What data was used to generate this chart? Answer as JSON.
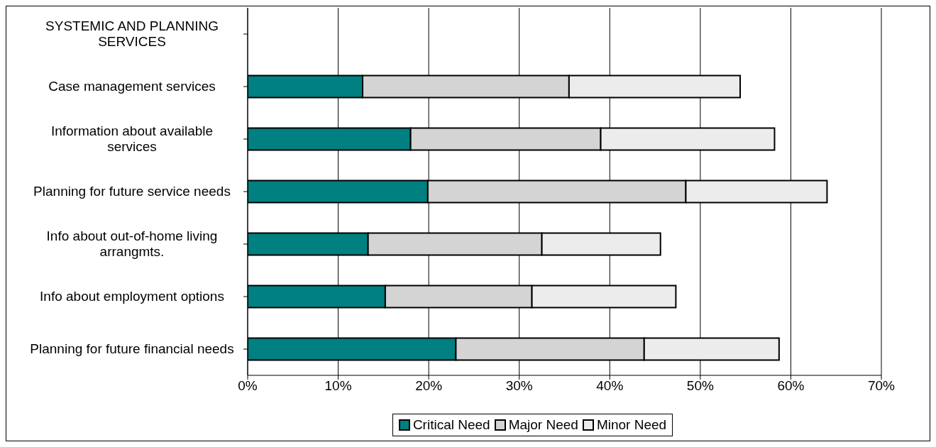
{
  "chart_data": {
    "type": "bar",
    "orientation": "horizontal",
    "stacked": true,
    "categories": [
      "SYSTEMIC AND PLANNING SERVICES",
      "Case management services",
      "Information about available services",
      "Planning for future service needs",
      "Info about out-of-home living arrangmts.",
      "Info about employment options",
      "Planning for future financial needs"
    ],
    "series": [
      {
        "name": "Critical Need",
        "color": "#008080",
        "values": [
          null,
          12.7,
          18.0,
          19.9,
          13.3,
          15.2,
          23.0
        ]
      },
      {
        "name": "Major Need",
        "color": "#d4d4d4",
        "values": [
          null,
          22.8,
          21.0,
          28.5,
          19.2,
          16.2,
          20.8
        ]
      },
      {
        "name": "Minor Need",
        "color": "#ececec",
        "values": [
          null,
          18.9,
          19.2,
          15.6,
          13.1,
          15.9,
          14.9
        ]
      }
    ],
    "xlim": [
      0,
      70
    ],
    "xticks": [
      {
        "value": 0,
        "label": "0%"
      },
      {
        "value": 10,
        "label": "10%"
      },
      {
        "value": 20,
        "label": "20%"
      },
      {
        "value": 30,
        "label": "30%"
      },
      {
        "value": 40,
        "label": "40%"
      },
      {
        "value": 50,
        "label": "50%"
      },
      {
        "value": 60,
        "label": "60%"
      },
      {
        "value": 70,
        "label": "70%"
      }
    ],
    "grid": "x",
    "legend": "bottom"
  }
}
